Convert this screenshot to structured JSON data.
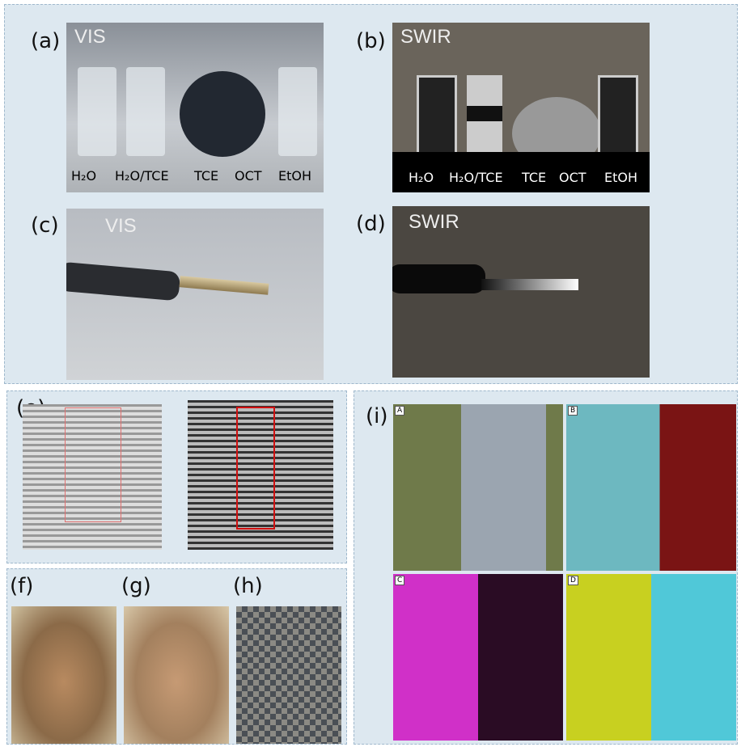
{
  "panels": {
    "a": {
      "label": "(a)",
      "tag": "VIS",
      "vials": [
        "H₂O",
        "H₂O/TCE",
        "TCE",
        "OCT",
        "EtOH"
      ]
    },
    "b": {
      "label": "(b)",
      "tag": "SWIR",
      "vials": [
        "H₂O",
        "H₂O/TCE",
        "TCE",
        "OCT",
        "EtOH"
      ]
    },
    "c": {
      "label": "(c)",
      "tag": "VIS"
    },
    "d": {
      "label": "(d)",
      "tag": "SWIR"
    },
    "e": {
      "label": "(e)"
    },
    "f": {
      "label": "(f)"
    },
    "g": {
      "label": "(g)"
    },
    "h": {
      "label": "(h)"
    },
    "i": {
      "label": "(i)",
      "subpanels": [
        "A",
        "B",
        "C",
        "D"
      ]
    }
  }
}
